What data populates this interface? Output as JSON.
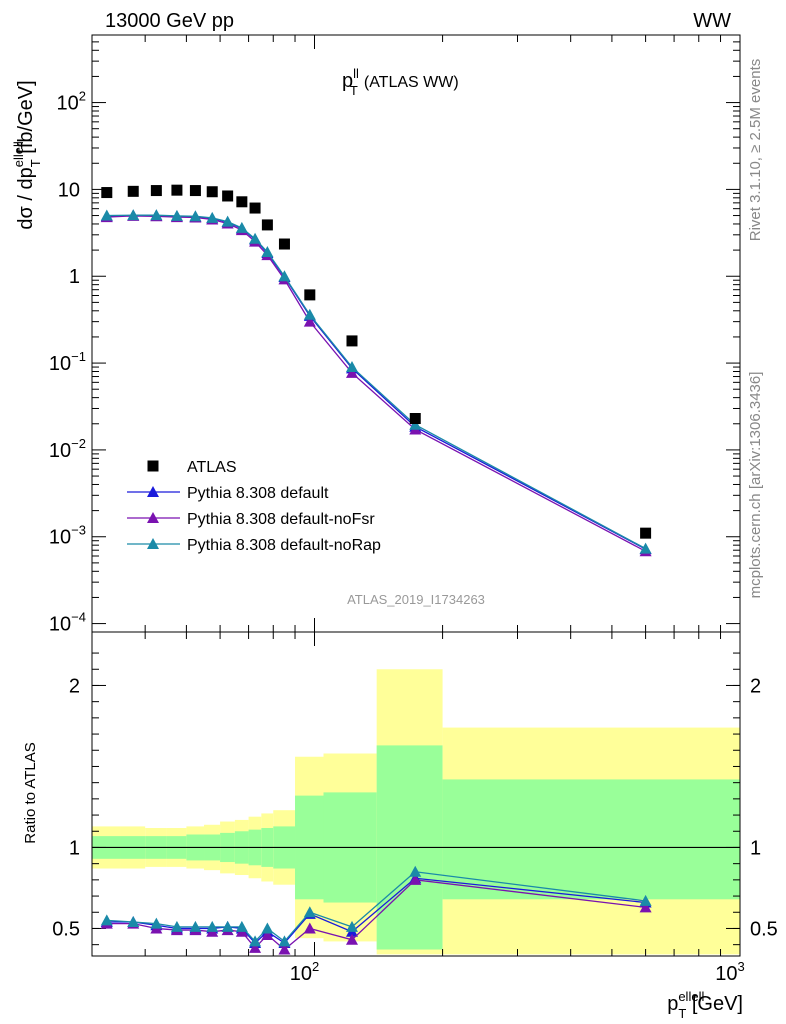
{
  "header": {
    "left": "13000 GeV pp",
    "right": "WW"
  },
  "side_labels": {
    "rivet": "Rivet 3.1.10, ≥ 2.5M events",
    "mcplots": "mcplots.cern.ch [arXiv:1306.3436]"
  },
  "watermark": "ATLAS_2019_I1734263",
  "colors": {
    "data": "#000000",
    "default": "#1a1adb",
    "noFsr": "#7a12b0",
    "noRap": "#1a8aa8",
    "band_inner": "#99ff99",
    "band_outer": "#ffff99"
  },
  "chart_data": [
    {
      "type": "scatter",
      "title": "p_T^ll (ATLAS WW)",
      "title_main": "p",
      "title_sup": "ll",
      "title_sub": "T",
      "title_rest": "(ATLAS WW)",
      "ylabel": "dσ / dp_T^ellell [fb/GeV]",
      "ylabel_parts": {
        "pre": "dσ / dp",
        "sup": "ellell",
        "sub": "T",
        "post": " [fb/GeV]"
      },
      "yscale": "log",
      "xscale": "log",
      "xlim": [
        30,
        1000
      ],
      "ylim": [
        8e-05,
        600
      ],
      "yticks": [
        "10⁻⁴",
        "10⁻³",
        "10⁻²",
        "10⁻¹",
        "1",
        "10",
        "10²"
      ],
      "ytick_labels": [
        {
          "base": "10",
          "exp": "−4"
        },
        {
          "base": "10",
          "exp": "−3"
        },
        {
          "base": "10",
          "exp": "−2"
        },
        {
          "base": "10",
          "exp": "−1"
        },
        {
          "base": "1",
          "exp": ""
        },
        {
          "base": "10",
          "exp": ""
        },
        {
          "base": "10",
          "exp": "2"
        }
      ],
      "legend": [
        "ATLAS",
        "Pythia 8.308 default",
        "Pythia 8.308 default-noFsr",
        "Pythia 8.308 default-noRap"
      ],
      "x": [
        32.5,
        37.5,
        42.5,
        47.5,
        52.5,
        57.5,
        62.5,
        67.5,
        72.5,
        77.5,
        85,
        97.5,
        122.5,
        172.5,
        600
      ],
      "series": [
        {
          "name": "ATLAS",
          "values": [
            9.2,
            9.5,
            9.7,
            9.8,
            9.7,
            9.4,
            8.4,
            7.2,
            6.1,
            3.9,
            2.35,
            0.61,
            0.18,
            0.023,
            0.0011
          ]
        },
        {
          "name": "Pythia 8.308 default",
          "values": [
            4.9,
            5.0,
            5.0,
            4.9,
            4.85,
            4.65,
            4.2,
            3.55,
            2.65,
            1.85,
            0.98,
            0.35,
            0.087,
            0.0185,
            0.00072
          ]
        },
        {
          "name": "Pythia 8.308 default-noFsr",
          "values": [
            4.8,
            4.95,
            4.9,
            4.8,
            4.75,
            4.5,
            4.05,
            3.4,
            2.5,
            1.75,
            0.92,
            0.3,
            0.077,
            0.0172,
            0.00068
          ]
        },
        {
          "name": "Pythia 8.308 default-noRap",
          "values": [
            5.0,
            5.05,
            5.05,
            4.95,
            4.9,
            4.7,
            4.25,
            3.6,
            2.7,
            1.9,
            1.0,
            0.36,
            0.09,
            0.0195,
            0.00073
          ]
        }
      ]
    },
    {
      "type": "scatter",
      "ylabel": "Ratio to ATLAS",
      "xlabel": "p_T^ellell [GeV]",
      "xlabel_parts": {
        "pre": "p",
        "sup": "ellell",
        "sub": "T",
        "post": " [GeV]"
      },
      "xscale": "log",
      "xlim": [
        30,
        1000
      ],
      "ylim": [
        0.33,
        2.33
      ],
      "yticks": [
        "0.5",
        "1",
        "2"
      ],
      "xticks": [
        {
          "base": "10",
          "exp": "2"
        },
        {
          "base": "10",
          "exp": "3"
        }
      ],
      "bins": [
        [
          30,
          35
        ],
        [
          35,
          40
        ],
        [
          40,
          45
        ],
        [
          45,
          50
        ],
        [
          50,
          55
        ],
        [
          55,
          60
        ],
        [
          60,
          65
        ],
        [
          65,
          70
        ],
        [
          70,
          75
        ],
        [
          75,
          80
        ],
        [
          80,
          90
        ],
        [
          90,
          105
        ],
        [
          105,
          140
        ],
        [
          140,
          200
        ],
        [
          200,
          1000
        ]
      ],
      "band_inner": [
        [
          0.93,
          1.07
        ],
        [
          0.93,
          1.07
        ],
        [
          0.93,
          1.07
        ],
        [
          0.93,
          1.07
        ],
        [
          0.92,
          1.08
        ],
        [
          0.92,
          1.08
        ],
        [
          0.91,
          1.09
        ],
        [
          0.9,
          1.1
        ],
        [
          0.89,
          1.11
        ],
        [
          0.88,
          1.12
        ],
        [
          0.87,
          1.13
        ],
        [
          0.68,
          1.32
        ],
        [
          0.66,
          1.34
        ],
        [
          0.37,
          1.63
        ],
        [
          0.68,
          1.42
        ]
      ],
      "band_outer": [
        [
          0.87,
          1.13
        ],
        [
          0.87,
          1.13
        ],
        [
          0.88,
          1.12
        ],
        [
          0.88,
          1.12
        ],
        [
          0.87,
          1.13
        ],
        [
          0.86,
          1.14
        ],
        [
          0.84,
          1.16
        ],
        [
          0.83,
          1.17
        ],
        [
          0.81,
          1.19
        ],
        [
          0.79,
          1.21
        ],
        [
          0.77,
          1.23
        ],
        [
          0.44,
          1.56
        ],
        [
          0.42,
          1.58
        ],
        [
          0.34,
          2.1
        ],
        [
          0.34,
          1.74
        ]
      ],
      "series": [
        {
          "name": "Pythia 8.308 default",
          "values": [
            0.54,
            0.54,
            0.52,
            0.5,
            0.5,
            0.5,
            0.51,
            0.5,
            0.41,
            0.48,
            0.41,
            0.59,
            0.48,
            0.81,
            0.66
          ]
        },
        {
          "name": "Pythia 8.308 default-noFsr",
          "values": [
            0.53,
            0.53,
            0.5,
            0.49,
            0.49,
            0.48,
            0.49,
            0.48,
            0.38,
            0.46,
            0.37,
            0.5,
            0.43,
            0.8,
            0.63
          ]
        },
        {
          "name": "Pythia 8.308 default-noRap",
          "values": [
            0.55,
            0.54,
            0.53,
            0.51,
            0.51,
            0.51,
            0.51,
            0.51,
            0.42,
            0.5,
            0.42,
            0.6,
            0.51,
            0.85,
            0.67
          ]
        }
      ]
    }
  ]
}
